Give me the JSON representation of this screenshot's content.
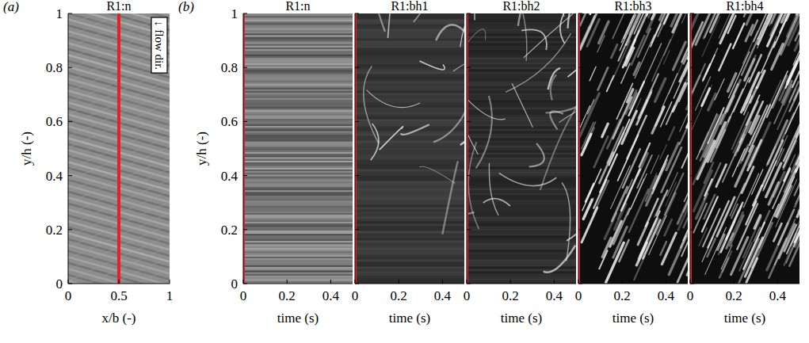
{
  "chart_data": [
    {
      "type": "image",
      "panel_label": "(a)",
      "title": "R1:n",
      "x_label": "x/b (-)",
      "y_label": "y/h (-)",
      "xlim": [
        0,
        1
      ],
      "xticks": [
        0,
        0.5,
        1
      ],
      "ylim": [
        0,
        1
      ],
      "yticks": [
        0,
        0.2,
        0.4,
        0.6,
        0.8,
        1
      ],
      "annotations": [
        "↓ flow dir."
      ],
      "vline": {
        "x": 0.5,
        "color": "#e3232c"
      }
    },
    {
      "type": "image",
      "panel_label": "(b)",
      "title": "R1:n",
      "x_label": "time (s)",
      "y_label": "y/h (-)",
      "xlim": [
        0,
        0.5
      ],
      "xticks": [
        0,
        0.2,
        0.4
      ],
      "ylim": [
        0,
        1
      ],
      "yticks": [
        0,
        0.2,
        0.4,
        0.6,
        0.8,
        1
      ],
      "vline": {
        "x": 0,
        "color": "#e3232c"
      }
    },
    {
      "type": "image",
      "title": "R1:bh1",
      "x_label": "time (s)",
      "xlim": [
        0,
        0.5
      ],
      "xticks": [
        0,
        0.2,
        0.4
      ],
      "ylim": [
        0,
        1
      ],
      "yticks": [
        0,
        0.2,
        0.4,
        0.6,
        0.8,
        1
      ],
      "tick_labels": "x",
      "vline": {
        "x": 0,
        "color": "#e3232c"
      }
    },
    {
      "type": "image",
      "title": "R1:bh2",
      "x_label": "time (s)",
      "xlim": [
        0,
        0.5
      ],
      "xticks": [
        0,
        0.2,
        0.4
      ],
      "ylim": [
        0,
        1
      ],
      "yticks": [
        0,
        0.2,
        0.4,
        0.6,
        0.8,
        1
      ],
      "tick_labels": "x",
      "vline": {
        "x": 0,
        "color": "#e3232c"
      }
    },
    {
      "type": "image",
      "title": "R1:bh3",
      "x_label": "time (s)",
      "xlim": [
        0,
        0.5
      ],
      "xticks": [
        0,
        0.2,
        0.4
      ],
      "ylim": [
        0,
        1
      ],
      "yticks": [
        0,
        0.2,
        0.4,
        0.6,
        0.8,
        1
      ],
      "tick_labels": "x",
      "vline": {
        "x": 0,
        "color": "#e3232c"
      }
    },
    {
      "type": "image",
      "title": "R1:bh4",
      "x_label": "time (s)",
      "xlim": [
        0,
        0.5
      ],
      "xticks": [
        0,
        0.2,
        0.4
      ],
      "ylim": [
        0,
        1
      ],
      "yticks": [
        0,
        0.2,
        0.4,
        0.6,
        0.8,
        1
      ],
      "tick_labels": "x",
      "vline": {
        "x": 0,
        "color": "#e3232c"
      }
    }
  ]
}
